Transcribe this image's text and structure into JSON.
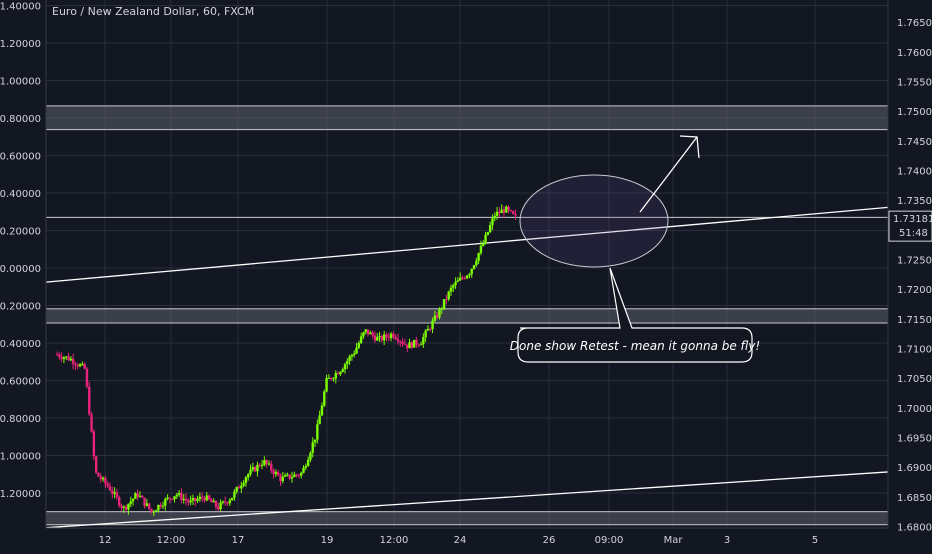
{
  "chart_data": {
    "type": "candlestick",
    "title": "Euro / New Zealand Dollar, 60, FXCM",
    "left_axis": {
      "ticks": [
        "1.40000",
        "1.20000",
        "1.00000",
        "0.80000",
        "0.60000",
        "0.40000",
        "0.20000",
        "0.00000",
        "-0.20000",
        "-0.40000",
        "-0.60000",
        "-0.80000",
        "-1.00000",
        "-1.20000"
      ],
      "tick_values": [
        1.4,
        1.2,
        1.0,
        0.8,
        0.6,
        0.4,
        0.2,
        0.0,
        -0.2,
        -0.4,
        -0.6,
        -0.8,
        -1.0,
        -1.2
      ]
    },
    "right_axis": {
      "ticks": [
        "1.76500",
        "1.76000",
        "1.75500",
        "1.75000",
        "1.74500",
        "1.74000",
        "1.73500",
        "1.73000",
        "1.72500",
        "1.72000",
        "1.71500",
        "1.71000",
        "1.70500",
        "1.70000",
        "1.69500",
        "1.69000",
        "1.68500",
        "1.68000"
      ],
      "tick_values": [
        1.765,
        1.76,
        1.755,
        1.75,
        1.745,
        1.74,
        1.735,
        1.73,
        1.725,
        1.72,
        1.715,
        1.71,
        1.705,
        1.7,
        1.695,
        1.69,
        1.685,
        1.68
      ],
      "ylim": [
        1.67975,
        1.76875
      ]
    },
    "x_ticks": [
      "12",
      "12:00",
      "17",
      "19",
      "12:00",
      "24",
      "26",
      "09:00",
      "Mar",
      "3",
      "5"
    ],
    "x_tick_positions": [
      0.0,
      0.1,
      0.2,
      0.3,
      0.4,
      0.5,
      0.6,
      0.7,
      0.8,
      0.9,
      1.0
    ],
    "last_price_label": "1.73181",
    "countdown_label": "51:48",
    "last_price": 1.73181,
    "zones": [
      [
        1.7469,
        1.7509
      ],
      [
        1.7143,
        1.7167
      ],
      [
        1.6803,
        1.6825
      ]
    ],
    "trendlines": [
      {
        "from": [
          0.0,
          1.7212
        ],
        "to": [
          1.0,
          1.7338
        ]
      },
      {
        "from": [
          0.0,
          1.6798
        ],
        "to": [
          1.0,
          1.6892
        ]
      }
    ],
    "horizontal_line": 1.7321,
    "price_path": [
      [
        0.0,
        1.709
      ],
      [
        0.02,
        1.7082
      ],
      [
        0.04,
        1.7065
      ],
      [
        0.055,
        1.689
      ],
      [
        0.075,
        1.6865
      ],
      [
        0.095,
        1.683
      ],
      [
        0.115,
        1.6855
      ],
      [
        0.135,
        1.6825
      ],
      [
        0.15,
        1.684
      ],
      [
        0.17,
        1.6855
      ],
      [
        0.19,
        1.684
      ],
      [
        0.21,
        1.685
      ],
      [
        0.23,
        1.6832
      ],
      [
        0.25,
        1.685
      ],
      [
        0.27,
        1.6885
      ],
      [
        0.295,
        1.691
      ],
      [
        0.32,
        1.688
      ],
      [
        0.35,
        1.689
      ],
      [
        0.37,
        1.6955
      ],
      [
        0.385,
        1.7045
      ],
      [
        0.405,
        1.7065
      ],
      [
        0.425,
        1.7095
      ],
      [
        0.44,
        1.713
      ],
      [
        0.46,
        1.7115
      ],
      [
        0.48,
        1.7125
      ],
      [
        0.5,
        1.7105
      ],
      [
        0.52,
        1.7112
      ],
      [
        0.545,
        1.716
      ],
      [
        0.565,
        1.7205
      ],
      [
        0.59,
        1.723
      ],
      [
        0.61,
        1.728
      ],
      [
        0.625,
        1.7325
      ],
      [
        0.64,
        1.7335
      ],
      [
        0.655,
        1.732
      ]
    ],
    "annotations": {
      "note_text": "Done show Retest - mean it gonna be fly!"
    },
    "colors": {
      "background": "#131722",
      "up": "#7cfc00",
      "down": "#e8237a",
      "grid": "#2a2e39",
      "zone_fill": "#5d606b",
      "line": "#d1d4dc"
    }
  }
}
